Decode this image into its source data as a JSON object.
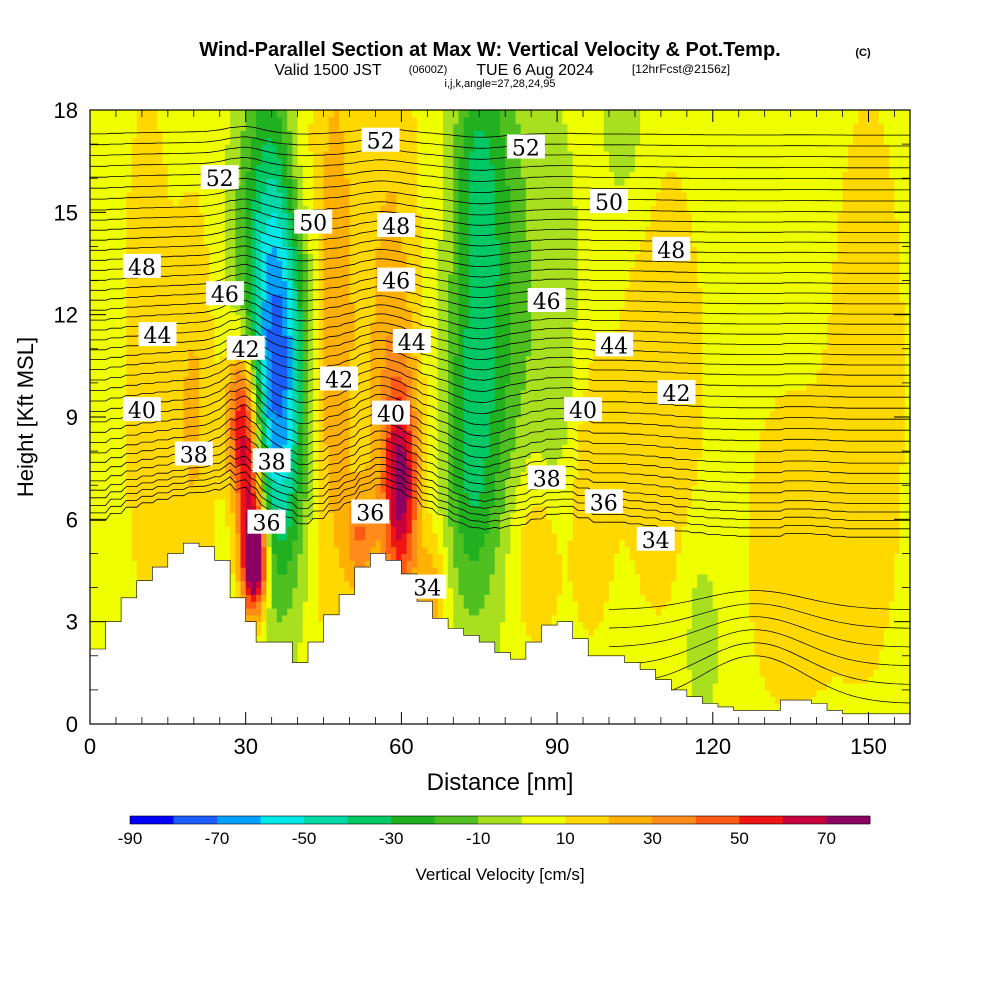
{
  "header": {
    "title": "Wind-Parallel Section at Max W: Vertical Velocity & Pot.Temp.",
    "copyright": "(C)",
    "valid_main": "Valid 1500 JST",
    "valid_utc": "(0600Z)",
    "valid_date": "TUE 6 Aug 2024",
    "forecast_info": "[12hrFcst@2156z]",
    "indices": "i,j,k,angle=27,28,24,95"
  },
  "chart_data": {
    "type": "heatmap",
    "xlabel": "Distance [nm]",
    "ylabel": "Height [Kft MSL]",
    "xlim": [
      0,
      158
    ],
    "ylim": [
      0,
      18
    ],
    "x_ticks": [
      "0",
      "30",
      "60",
      "90",
      "120",
      "150"
    ],
    "x_tick_values": [
      0,
      30,
      60,
      90,
      120,
      150
    ],
    "y_ticks": [
      "0",
      "3",
      "6",
      "9",
      "12",
      "15",
      "18"
    ],
    "y_tick_values": [
      0,
      3,
      6,
      9,
      12,
      15,
      18
    ],
    "colorbar": {
      "label": "Vertical Velocity [cm/s]",
      "tick_labels": [
        "-90",
        "-70",
        "-50",
        "-30",
        "-10",
        "10",
        "30",
        "50",
        "70"
      ],
      "tick_values": [
        -90,
        -70,
        -50,
        -30,
        -10,
        10,
        30,
        50,
        70
      ],
      "bounds": [
        -90,
        -80,
        -70,
        -60,
        -50,
        -40,
        -30,
        -20,
        -10,
        0,
        10,
        20,
        30,
        40,
        50,
        60,
        70,
        80
      ],
      "colors": [
        "#0000ff",
        "#1a5cff",
        "#00a0ff",
        "#00e8e8",
        "#00d8a8",
        "#00c864",
        "#20b020",
        "#50c020",
        "#a8e020",
        "#f0ff00",
        "#ffd800",
        "#ffb000",
        "#ff8c1a",
        "#ff5a14",
        "#f01414",
        "#c8003c",
        "#8c0064"
      ]
    },
    "terrain_kft": [
      [
        0,
        2.2
      ],
      [
        3,
        3.0
      ],
      [
        6,
        3.7
      ],
      [
        9,
        4.2
      ],
      [
        12,
        4.6
      ],
      [
        15,
        5.0
      ],
      [
        18,
        5.3
      ],
      [
        21,
        5.2
      ],
      [
        24,
        4.8
      ],
      [
        27,
        3.7
      ],
      [
        30,
        3.0
      ],
      [
        32,
        2.4
      ],
      [
        36,
        2.4
      ],
      [
        39,
        1.8
      ],
      [
        42,
        2.4
      ],
      [
        45,
        3.2
      ],
      [
        48,
        3.8
      ],
      [
        51,
        4.6
      ],
      [
        54,
        5.0
      ],
      [
        57,
        4.8
      ],
      [
        60,
        4.4
      ],
      [
        63,
        3.6
      ],
      [
        66,
        3.1
      ],
      [
        69,
        2.8
      ],
      [
        72,
        2.6
      ],
      [
        75,
        2.4
      ],
      [
        78,
        2.1
      ],
      [
        81,
        1.9
      ],
      [
        84,
        2.4
      ],
      [
        87,
        2.9
      ],
      [
        90,
        3.0
      ],
      [
        93,
        2.5
      ],
      [
        96,
        2.0
      ],
      [
        100,
        2.0
      ],
      [
        103,
        1.8
      ],
      [
        106,
        1.6
      ],
      [
        109,
        1.3
      ],
      [
        112,
        1.0
      ],
      [
        115,
        0.8
      ],
      [
        118,
        0.6
      ],
      [
        121,
        0.5
      ],
      [
        124,
        0.4
      ],
      [
        127,
        0.4
      ],
      [
        130,
        0.4
      ],
      [
        133,
        0.7
      ],
      [
        136,
        0.7
      ],
      [
        139,
        0.6
      ],
      [
        142,
        0.4
      ],
      [
        145,
        0.3
      ],
      [
        148,
        0.3
      ],
      [
        151,
        0.3
      ],
      [
        154,
        0.3
      ],
      [
        158,
        0.3
      ]
    ],
    "velocity_features": [
      {
        "x": 35,
        "y": 12.0,
        "sx": 4.5,
        "sy": 5.0,
        "w": -60
      },
      {
        "x": 37,
        "y": 9.5,
        "sx": 3.0,
        "sy": 3.5,
        "w": -30
      },
      {
        "x": 29,
        "y": 9.0,
        "sx": 2.0,
        "sy": 1.8,
        "w": 55
      },
      {
        "x": 31,
        "y": 6.5,
        "sx": 1.8,
        "sy": 2.2,
        "w": 55
      },
      {
        "x": 32,
        "y": 4.8,
        "sx": 1.6,
        "sy": 1.0,
        "w": 80
      },
      {
        "x": 60,
        "y": 7.0,
        "sx": 2.2,
        "sy": 2.0,
        "w": 55
      },
      {
        "x": 58,
        "y": 10.0,
        "sx": 3.5,
        "sy": 6.0,
        "w": 22
      },
      {
        "x": 47,
        "y": 12.0,
        "sx": 3.0,
        "sy": 6.0,
        "w": 24
      },
      {
        "x": 78,
        "y": 13.0,
        "sx": 5.0,
        "sy": 6.0,
        "w": -30
      },
      {
        "x": 73,
        "y": 8.0,
        "sx": 3.5,
        "sy": 3.5,
        "w": -28
      },
      {
        "x": 74,
        "y": 16.0,
        "sx": 3.0,
        "sy": 2.5,
        "w": -20
      },
      {
        "x": 90,
        "y": 11.0,
        "sx": 3.5,
        "sy": 5.0,
        "w": -14
      },
      {
        "x": 103,
        "y": 17.5,
        "sx": 3.5,
        "sy": 2.0,
        "w": -12
      },
      {
        "x": 118,
        "y": 2.5,
        "sx": 2.5,
        "sy": 2.0,
        "w": -14
      },
      {
        "x": 20,
        "y": 9.0,
        "sx": 3.0,
        "sy": 4.0,
        "w": 16
      },
      {
        "x": 11,
        "y": 11.0,
        "sx": 3.0,
        "sy": 5.0,
        "w": 12
      },
      {
        "x": 86,
        "y": 5.0,
        "sx": 4.0,
        "sy": 2.0,
        "w": 18
      },
      {
        "x": 96,
        "y": 7.0,
        "sx": 3.0,
        "sy": 3.0,
        "w": 12
      },
      {
        "x": 110,
        "y": 10.0,
        "sx": 6.0,
        "sy": 5.0,
        "w": 10
      },
      {
        "x": 135,
        "y": 5.0,
        "sx": 7.0,
        "sy": 4.0,
        "w": 8
      },
      {
        "x": 150,
        "y": 10.0,
        "sx": 5.0,
        "sy": 6.0,
        "w": 10
      },
      {
        "x": 66,
        "y": 3.8,
        "sx": 2.0,
        "sy": 1.2,
        "w": 22
      },
      {
        "x": 52,
        "y": 5.5,
        "sx": 2.0,
        "sy": 1.0,
        "w": 28
      },
      {
        "x": 40,
        "y": 16.5,
        "sx": 2.5,
        "sy": 2.0,
        "w": 14
      }
    ],
    "isentropes": [
      {
        "label": "34",
        "y_far": 5.4
      },
      {
        "label": "36",
        "y_far": 6.4
      },
      {
        "label": "38",
        "y_far": 7.6
      },
      {
        "label": "40",
        "y_far": 8.9
      },
      {
        "label": "42",
        "y_far": 10.2
      },
      {
        "label": "44",
        "y_far": 11.4
      },
      {
        "label": "46",
        "y_far": 12.6
      },
      {
        "label": "48",
        "y_far": 13.8
      },
      {
        "label": "50",
        "y_far": 15.0
      },
      {
        "label": "52",
        "y_far": 16.3
      }
    ],
    "contour_labels": [
      {
        "text": "52",
        "x": 25,
        "y": 16.0
      },
      {
        "text": "52",
        "x": 84,
        "y": 16.9
      },
      {
        "text": "52",
        "x": 56,
        "y": 17.1
      },
      {
        "text": "50",
        "x": 43,
        "y": 14.7
      },
      {
        "text": "50",
        "x": 100,
        "y": 15.3
      },
      {
        "text": "48",
        "x": 10,
        "y": 13.4
      },
      {
        "text": "48",
        "x": 59,
        "y": 14.6
      },
      {
        "text": "48",
        "x": 112,
        "y": 13.9
      },
      {
        "text": "46",
        "x": 26,
        "y": 12.6
      },
      {
        "text": "46",
        "x": 59,
        "y": 13.0
      },
      {
        "text": "46",
        "x": 88,
        "y": 12.4
      },
      {
        "text": "44",
        "x": 13,
        "y": 11.4
      },
      {
        "text": "44",
        "x": 62,
        "y": 11.2
      },
      {
        "text": "44",
        "x": 101,
        "y": 11.1
      },
      {
        "text": "42",
        "x": 30,
        "y": 11.0
      },
      {
        "text": "42",
        "x": 48,
        "y": 10.1
      },
      {
        "text": "42",
        "x": 113,
        "y": 9.7
      },
      {
        "text": "40",
        "x": 10,
        "y": 9.2
      },
      {
        "text": "40",
        "x": 58,
        "y": 9.1
      },
      {
        "text": "40",
        "x": 95,
        "y": 9.2
      },
      {
        "text": "38",
        "x": 20,
        "y": 7.9
      },
      {
        "text": "38",
        "x": 35,
        "y": 7.7
      },
      {
        "text": "38",
        "x": 88,
        "y": 7.2
      },
      {
        "text": "36",
        "x": 34,
        "y": 5.9
      },
      {
        "text": "36",
        "x": 54,
        "y": 6.2
      },
      {
        "text": "36",
        "x": 99,
        "y": 6.5
      },
      {
        "text": "34",
        "x": 65,
        "y": 4.0
      },
      {
        "text": "34",
        "x": 109,
        "y": 5.4
      }
    ]
  }
}
